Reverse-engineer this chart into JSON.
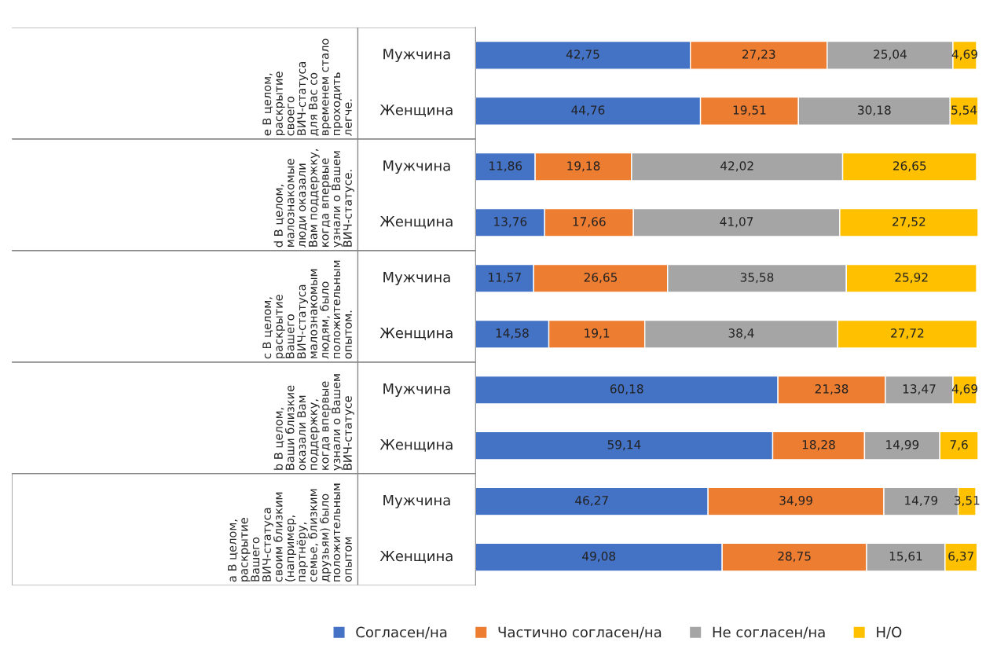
{
  "chart_data": {
    "type": "bar",
    "orientation": "horizontal",
    "stacked": true,
    "legend": "bottom",
    "categories": [
      "Мужчина",
      "Женщина",
      "Мужчина",
      "Женщина",
      "Мужчина",
      "Женщина",
      "Мужчина",
      "Женщина",
      "Мужчина",
      "Женщина"
    ],
    "annotations": [
      "e В целом, раскрытие своего ВИЧ-статуса для Вас со временем стало проходить легче.",
      "d В целом, малознакомые люди оказали Вам поддержку, когда впервые узнали о Вашем ВИЧ-статусе.",
      "c В целом, раскрытие Вашего ВИЧ-статуса малознакомым людям, было положительным опытом.",
      "b В целом, Ваши близкие оказали Вам поддержку, когда впервые узнали о Вашем ВИЧ-статусе",
      "a В целом, раскрытие Вашего ВИЧ-статуса своим близким (например, партнёру, семье, близким друзьям) было положительным опытом"
    ],
    "series": [
      {
        "name": "Согласен/на",
        "color": "#4472c4",
        "values": [
          42.75,
          44.76,
          11.86,
          13.76,
          11.57,
          14.58,
          60.18,
          59.14,
          46.27,
          49.08
        ],
        "value_labels": [
          "42,75",
          "44,76",
          "11,86",
          "13,76",
          "11,57",
          "14,58",
          "60,18",
          "59,14",
          "46,27",
          "49,08"
        ]
      },
      {
        "name": "Частично согласен/на",
        "color": "#ed7d31",
        "values": [
          27.23,
          19.51,
          19.18,
          17.66,
          26.65,
          19.1,
          21.38,
          18.28,
          34.99,
          28.75
        ],
        "value_labels": [
          "27,23",
          "19,51",
          "19,18",
          "17,66",
          "26,65",
          "19,1",
          "21,38",
          "18,28",
          "34,99",
          "28,75"
        ]
      },
      {
        "name": "Не согласен/на",
        "color": "#a5a5a5",
        "values": [
          25.04,
          30.18,
          42.02,
          41.07,
          35.58,
          38.4,
          13.47,
          14.99,
          14.79,
          15.61
        ],
        "value_labels": [
          "25,04",
          "30,18",
          "42,02",
          "41,07",
          "35,58",
          "38,4",
          "13,47",
          "14,99",
          "14,79",
          "15,61"
        ]
      },
      {
        "name": "Н/О",
        "color": "#ffc000",
        "values": [
          4.69,
          5.54,
          26.65,
          27.52,
          25.92,
          27.72,
          4.69,
          7.6,
          3.51,
          6.37
        ],
        "value_labels": [
          "4,69",
          "5,54",
          "26,65",
          "27,52",
          "25,92",
          "27,72",
          "4,69",
          "7,6",
          "3,51",
          "6,37"
        ]
      }
    ]
  }
}
